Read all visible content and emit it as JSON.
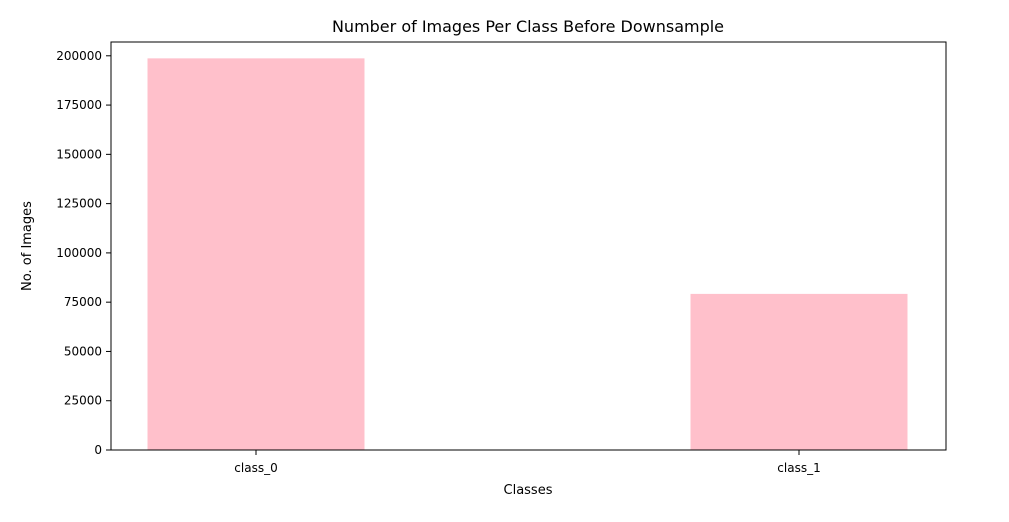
{
  "chart_data": {
    "type": "bar",
    "title": "Number of Images Per Class Before Downsample",
    "xlabel": "Classes",
    "ylabel": "No. of Images",
    "categories": [
      "class_0",
      "class_1"
    ],
    "values": [
      198700,
      79200
    ],
    "ylim": [
      0,
      207000
    ],
    "yticks": [
      0,
      25000,
      50000,
      75000,
      100000,
      125000,
      150000,
      175000,
      200000
    ],
    "ytick_labels": [
      "0",
      "25000",
      "50000",
      "75000",
      "100000",
      "125000",
      "150000",
      "175000",
      "200000"
    ],
    "grid": false,
    "bar_color": "#ffc0cb"
  }
}
